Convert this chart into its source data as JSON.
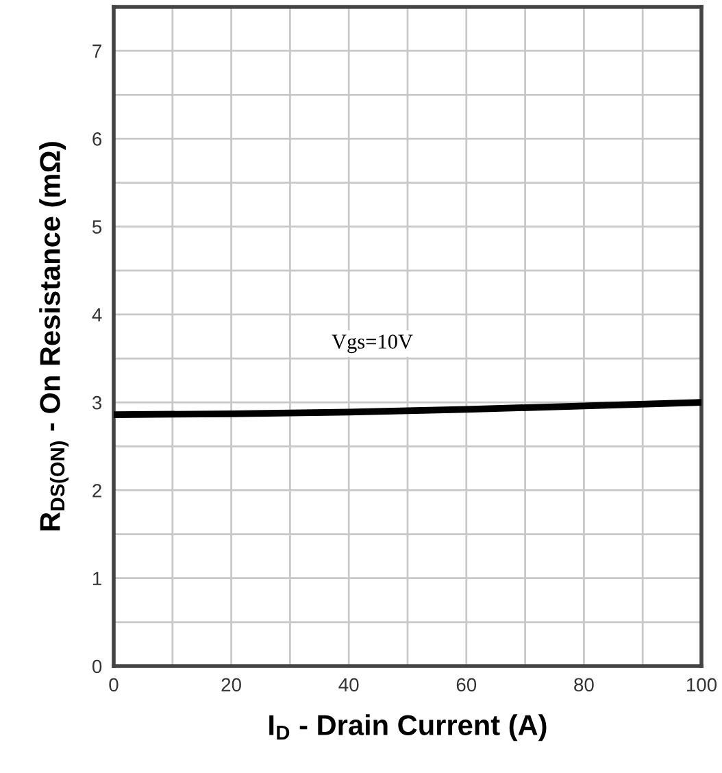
{
  "chart_data": {
    "type": "line",
    "xlabel": "I$_{D}$ - Drain Current (A)",
    "ylabel": "R$_{DS(ON)}$ - On Resistance (mΩ)",
    "series": [
      {
        "name": "Vgs=10V",
        "color": "#000000",
        "x": [
          0,
          20,
          40,
          60,
          80,
          100
        ],
        "values": [
          2.86,
          2.87,
          2.89,
          2.92,
          2.96,
          3.0
        ]
      }
    ],
    "xlim": [
      0,
      100
    ],
    "xticks": [
      0,
      {
        "value": 10,
        "label": null
      },
      20,
      {
        "value": 30,
        "label": null
      },
      40,
      {
        "value": 50,
        "label": null
      },
      60,
      {
        "value": 70,
        "label": null
      },
      80,
      {
        "value": 90,
        "label": null
      },
      100
    ],
    "ylim": [
      0,
      7.5
    ],
    "yticks": [
      0,
      {
        "value": 0.5,
        "label": null
      },
      1,
      {
        "value": 1.5,
        "label": null
      },
      2,
      {
        "value": 2.5,
        "label": null
      },
      3,
      {
        "value": 3.5,
        "label": null
      },
      4,
      {
        "value": 4.5,
        "label": null
      },
      5,
      {
        "value": 5.5,
        "label": null
      },
      6,
      {
        "value": 6.5,
        "label": null
      },
      7
    ],
    "grid": true,
    "marker": "none",
    "line_style": "solid"
  }
}
